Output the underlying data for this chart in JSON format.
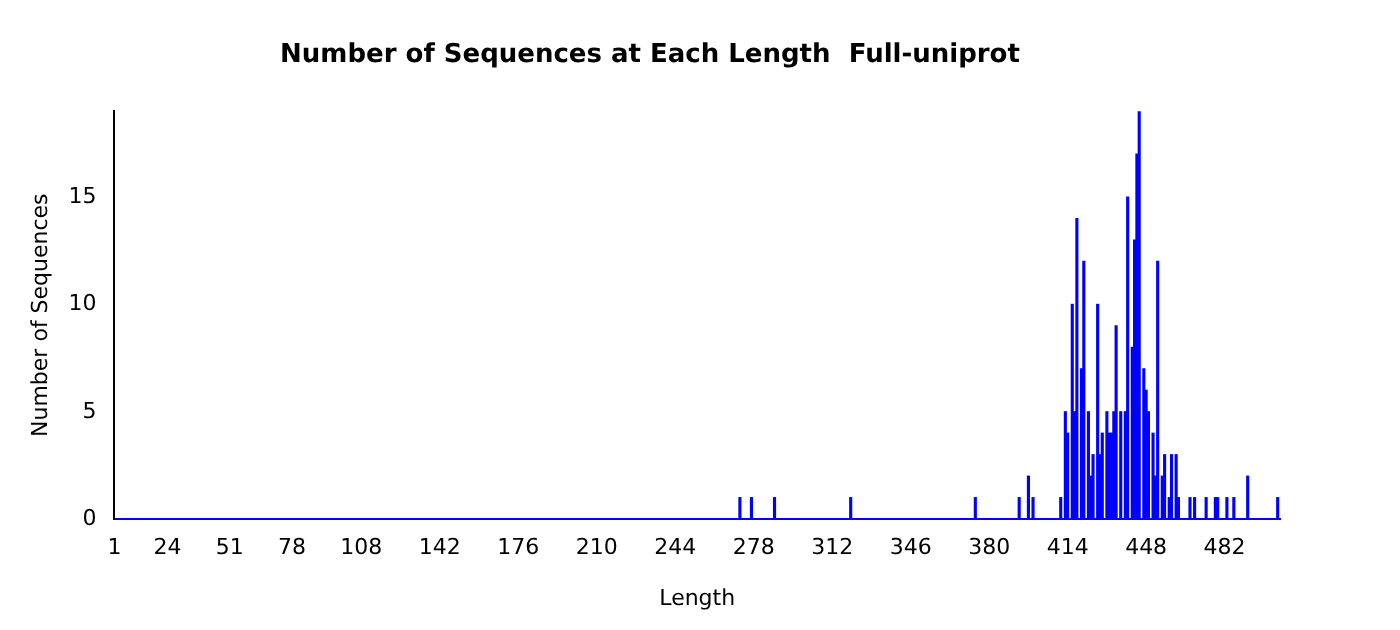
{
  "chart_data": {
    "type": "bar",
    "title": "Number of Sequences at Each Length  Full-uniprot",
    "xlabel": "Length",
    "ylabel": "Number of Sequences",
    "x": [
      272,
      277,
      287,
      320,
      374,
      393,
      397,
      399,
      411,
      413,
      414,
      416,
      417,
      418,
      420,
      421,
      423,
      424,
      425,
      427,
      428,
      429,
      431,
      432,
      433,
      434,
      435,
      437,
      439,
      440,
      442,
      443,
      444,
      445,
      447,
      448,
      449,
      451,
      452,
      453,
      455,
      456,
      458,
      459,
      461,
      462,
      467,
      469,
      474,
      478,
      479,
      483,
      486,
      492,
      505
    ],
    "values": [
      1,
      1,
      1,
      1,
      1,
      1,
      2,
      1,
      1,
      5,
      4,
      10,
      5,
      14,
      7,
      12,
      5,
      2,
      3,
      10,
      3,
      4,
      5,
      4,
      4,
      5,
      9,
      5,
      5,
      15,
      8,
      13,
      17,
      19,
      7,
      6,
      5,
      4,
      2,
      12,
      2,
      3,
      1,
      3,
      3,
      1,
      1,
      1,
      1,
      1,
      1,
      1,
      1,
      2,
      1
    ],
    "color": "#0000ff",
    "xlim": [
      1,
      506
    ],
    "xticks": [
      1,
      24,
      51,
      78,
      108,
      142,
      176,
      210,
      244,
      278,
      312,
      346,
      380,
      414,
      448,
      482
    ],
    "ylim": [
      0,
      19
    ],
    "yticks": [
      0,
      5,
      10,
      15
    ],
    "grid": false,
    "legend": false
  }
}
